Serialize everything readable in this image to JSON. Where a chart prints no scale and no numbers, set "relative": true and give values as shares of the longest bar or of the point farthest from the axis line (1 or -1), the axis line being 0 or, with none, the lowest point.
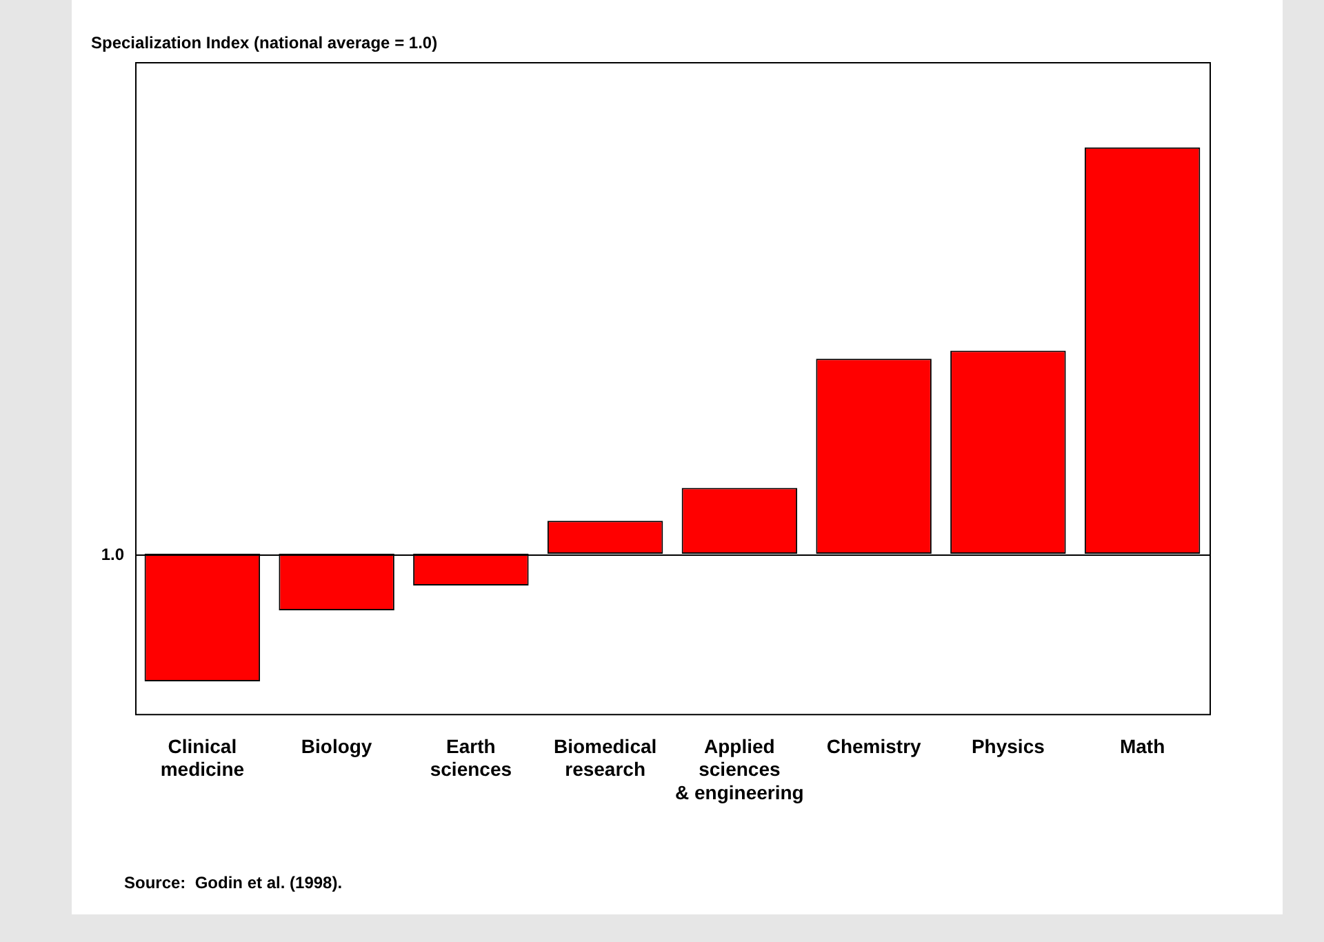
{
  "chart_data": {
    "type": "bar",
    "relative": true,
    "title": "Specialization Index (national average = 1.0)",
    "categories": [
      "Clinical medicine",
      "Biology",
      "Earth sciences",
      "Biomedical research",
      "Applied sciences & engineering",
      "Chemistry",
      "Physics",
      "Math"
    ],
    "values": [
      -0.314,
      -0.139,
      -0.078,
      0.081,
      0.162,
      0.48,
      0.5,
      1
    ],
    "color": "#ff0000",
    "annotations": [
      "1.0",
      "Source:  Godin et al. (1998)."
    ],
    "grid": false,
    "legend": false
  }
}
